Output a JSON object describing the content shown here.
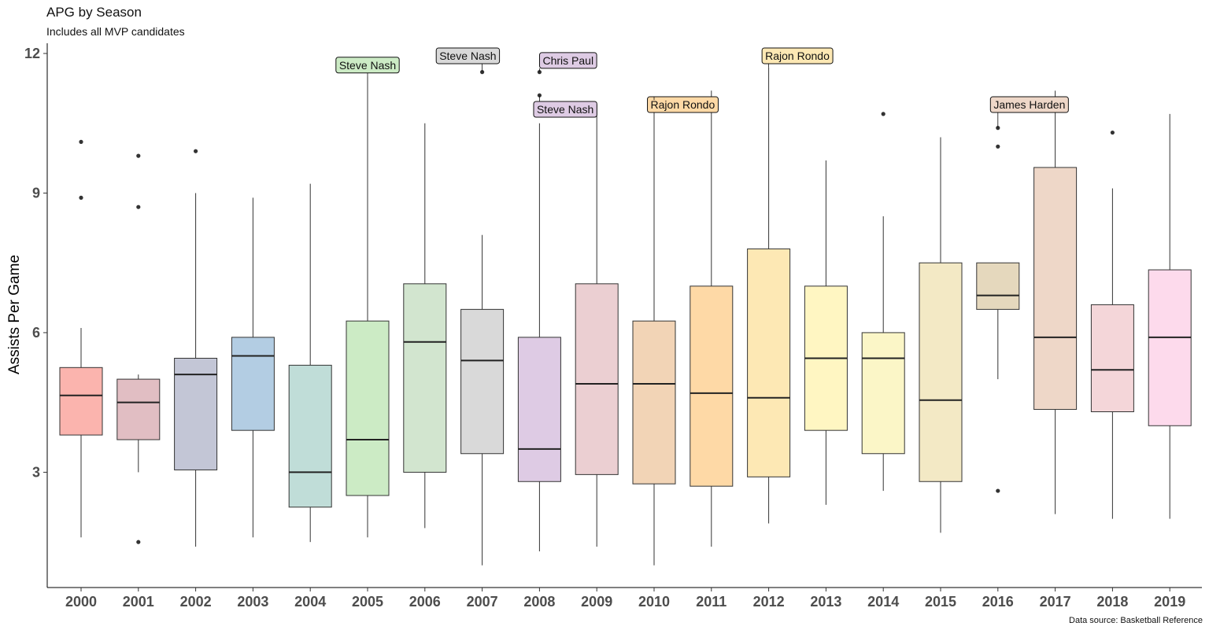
{
  "chart_data": {
    "type": "box",
    "title": "APG by Season",
    "subtitle": "Includes all MVP candidates",
    "ylabel": "Assists Per Game",
    "xlabel": "",
    "caption": "Data source: Basketball Reference",
    "ylim": [
      0.3,
      12.4
    ],
    "yticks": [
      3,
      6,
      9,
      12
    ],
    "grid": false,
    "legend": "none",
    "categories": [
      "2000",
      "2001",
      "2002",
      "2003",
      "2004",
      "2005",
      "2006",
      "2007",
      "2008",
      "2009",
      "2010",
      "2011",
      "2012",
      "2013",
      "2014",
      "2015",
      "2016",
      "2017",
      "2018",
      "2019"
    ],
    "colors": [
      "#FBB4AE",
      "#E1BEC3",
      "#C3C6D6",
      "#B3CDE3",
      "#C0DDD8",
      "#CCEBC5",
      "#D2E5CF",
      "#D9D9D9",
      "#DECBE4",
      "#EBCFD2",
      "#F2D4B6",
      "#FED9A6",
      "#FDE8B4",
      "#FFF6C2",
      "#FBF6C7",
      "#F3E9C5",
      "#E5D8BD",
      "#EED7C8",
      "#F4D6D9",
      "#FDDAEC"
    ],
    "boxes": [
      {
        "year": "2000",
        "whisker_low": 1.6,
        "q1": 3.8,
        "median": 4.65,
        "q3": 5.25,
        "whisker_high": 6.1,
        "outliers": [
          8.9,
          10.1
        ]
      },
      {
        "year": "2001",
        "whisker_low": 3.0,
        "q1": 3.7,
        "median": 4.5,
        "q3": 5.0,
        "whisker_high": 5.1,
        "outliers": [
          1.5,
          8.7,
          9.8
        ]
      },
      {
        "year": "2002",
        "whisker_low": 1.4,
        "q1": 3.05,
        "median": 5.1,
        "q3": 5.45,
        "whisker_high": 9.0,
        "outliers": [
          9.9
        ]
      },
      {
        "year": "2003",
        "whisker_low": 1.6,
        "q1": 3.9,
        "median": 5.5,
        "q3": 5.9,
        "whisker_high": 8.9,
        "outliers": []
      },
      {
        "year": "2004",
        "whisker_low": 1.5,
        "q1": 2.25,
        "median": 3.0,
        "q3": 5.3,
        "whisker_high": 9.2,
        "outliers": []
      },
      {
        "year": "2005",
        "whisker_low": 1.6,
        "q1": 2.5,
        "median": 3.7,
        "q3": 6.25,
        "whisker_high": 11.5,
        "outliers": []
      },
      {
        "year": "2006",
        "whisker_low": 1.8,
        "q1": 3.0,
        "median": 5.8,
        "q3": 7.05,
        "whisker_high": 10.5,
        "outliers": []
      },
      {
        "year": "2007",
        "whisker_low": 1.0,
        "q1": 3.4,
        "median": 5.4,
        "q3": 6.5,
        "whisker_high": 8.1,
        "outliers": [
          11.6
        ]
      },
      {
        "year": "2008",
        "whisker_low": 1.3,
        "q1": 2.8,
        "median": 3.5,
        "q3": 5.9,
        "whisker_high": 10.5,
        "outliers": [
          11.1,
          11.6
        ]
      },
      {
        "year": "2009",
        "whisker_low": 1.4,
        "q1": 2.95,
        "median": 4.9,
        "q3": 7.05,
        "whisker_high": 10.9,
        "outliers": []
      },
      {
        "year": "2010",
        "whisker_low": 1.0,
        "q1": 2.75,
        "median": 4.9,
        "q3": 6.25,
        "whisker_high": 11.0,
        "outliers": []
      },
      {
        "year": "2011",
        "whisker_low": 1.4,
        "q1": 2.7,
        "median": 4.7,
        "q3": 7.0,
        "whisker_high": 11.2,
        "outliers": []
      },
      {
        "year": "2012",
        "whisker_low": 1.9,
        "q1": 2.9,
        "median": 4.6,
        "q3": 7.8,
        "whisker_high": 11.7,
        "outliers": []
      },
      {
        "year": "2013",
        "whisker_low": 2.3,
        "q1": 3.9,
        "median": 5.45,
        "q3": 7.0,
        "whisker_high": 9.7,
        "outliers": []
      },
      {
        "year": "2014",
        "whisker_low": 2.6,
        "q1": 3.4,
        "median": 5.45,
        "q3": 6.0,
        "whisker_high": 8.5,
        "outliers": [
          10.7
        ]
      },
      {
        "year": "2015",
        "whisker_low": 1.7,
        "q1": 2.8,
        "median": 4.55,
        "q3": 7.5,
        "whisker_high": 10.2,
        "outliers": []
      },
      {
        "year": "2016",
        "whisker_low": 5.0,
        "q1": 6.5,
        "median": 6.8,
        "q3": 7.5,
        "whisker_high": 7.5,
        "outliers": [
          2.6,
          10.0,
          10.4
        ]
      },
      {
        "year": "2017",
        "whisker_low": 2.1,
        "q1": 4.35,
        "median": 5.9,
        "q3": 9.55,
        "whisker_high": 11.2,
        "outliers": []
      },
      {
        "year": "2018",
        "whisker_low": 2.0,
        "q1": 4.3,
        "median": 5.2,
        "q3": 6.6,
        "whisker_high": 9.1,
        "outliers": [
          10.3
        ]
      },
      {
        "year": "2019",
        "whisker_low": 2.0,
        "q1": 4.0,
        "median": 5.9,
        "q3": 7.35,
        "whisker_high": 10.7,
        "outliers": []
      }
    ],
    "annotations": [
      {
        "label": "Steve Nash",
        "x": "2005",
        "y": 11.5,
        "anchor_y": 11.75,
        "fill": "#CCEBC5"
      },
      {
        "label": "Steve Nash",
        "x": "2007",
        "y": 11.6,
        "anchor_y": 11.95,
        "fill": "#D9D9D9",
        "offset_x": -0.25
      },
      {
        "label": "Chris Paul",
        "x": "2008",
        "y": 11.6,
        "anchor_y": 11.85,
        "fill": "#DECBE4",
        "offset_x": 0.5
      },
      {
        "label": "Steve Nash",
        "x": "2008",
        "y": 11.1,
        "anchor_y": 10.8,
        "fill": "#DECBE4",
        "offset_x": 0.45
      },
      {
        "label": "Rajon Rondo",
        "x": "2010",
        "y": 11.0,
        "anchor_y": 10.9,
        "fill": "#FED9A6",
        "offset_x": 0.5
      },
      {
        "label": "Rajon Rondo",
        "x": "2012",
        "y": 11.7,
        "anchor_y": 11.95,
        "fill": "#FDE8B4",
        "offset_x": 0.5
      },
      {
        "label": "James Harden",
        "x": "2016",
        "y": 10.4,
        "anchor_y": 10.9,
        "fill": "#EED7C8",
        "offset_x": 0.55
      }
    ]
  }
}
